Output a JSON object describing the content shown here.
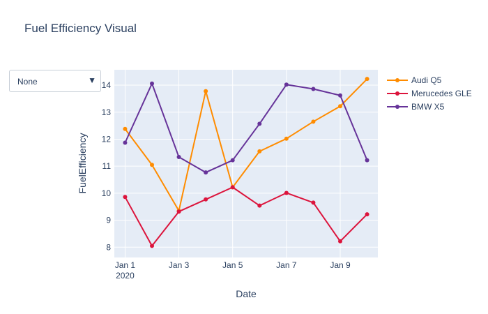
{
  "chart_data": {
    "type": "line",
    "title": "Fuel Efficiency Visual",
    "xlabel": "Date",
    "ylabel": "FuelEfficiency",
    "x": [
      "2020-01-01",
      "2020-01-02",
      "2020-01-03",
      "2020-01-04",
      "2020-01-05",
      "2020-01-06",
      "2020-01-07",
      "2020-01-08",
      "2020-01-09",
      "2020-01-10"
    ],
    "x_tick_labels": [
      {
        "day": 1,
        "label": "Jan 1",
        "sublabel": "2020"
      },
      {
        "day": 3,
        "label": "Jan 3"
      },
      {
        "day": 5,
        "label": "Jan 5"
      },
      {
        "day": 7,
        "label": "Jan 7"
      },
      {
        "day": 9,
        "label": "Jan 9"
      }
    ],
    "xlim": [
      0.6,
      10.4
    ],
    "y_ticks": [
      8,
      9,
      10,
      11,
      12,
      13,
      14
    ],
    "ylim": [
      7.62,
      14.57
    ],
    "grid": true,
    "legend_position": "right",
    "series": [
      {
        "name": "Audi Q5",
        "color": "#ff8c00",
        "values": [
          12.38,
          11.05,
          9.35,
          13.78,
          10.22,
          11.55,
          12.02,
          12.65,
          13.22,
          14.23
        ]
      },
      {
        "name": "Merucedes GLE",
        "color": "#dc143c",
        "values": [
          9.86,
          8.05,
          9.32,
          9.77,
          10.22,
          9.54,
          10.01,
          9.65,
          8.22,
          9.22
        ]
      },
      {
        "name": "BMW X5",
        "color": "#663399",
        "values": [
          11.87,
          14.06,
          11.34,
          10.77,
          11.22,
          12.57,
          14.02,
          13.86,
          13.62,
          11.22
        ]
      }
    ]
  },
  "dropdown": {
    "value": "None",
    "arrow": "▼"
  }
}
